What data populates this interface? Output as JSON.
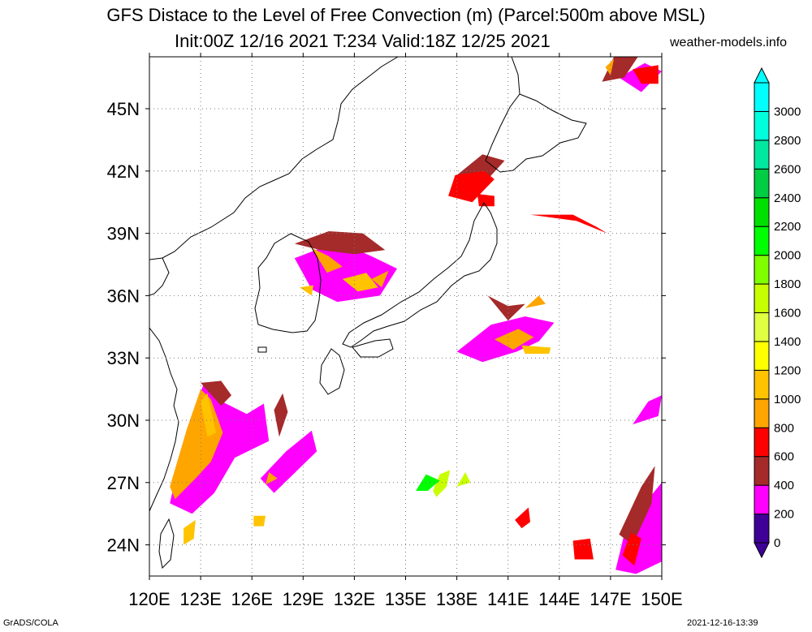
{
  "title": {
    "line1": "GFS Distace to the Level of Free Convection (m) (Parcel:500m above MSL)",
    "line2": "Init:00Z 12/16 2021 T:234 Valid:18Z 12/25 2021",
    "site": "weather-models.info"
  },
  "footer": {
    "left": "GrADS/COLA",
    "right": "2021-12-16-13:39"
  },
  "map": {
    "lon_range": [
      120,
      150
    ],
    "lat_range": [
      22.5,
      47.5
    ],
    "x_ticks": [
      "120E",
      "123E",
      "126E",
      "129E",
      "132E",
      "135E",
      "138E",
      "141E",
      "144E",
      "147E",
      "150E"
    ],
    "y_ticks": [
      "24N",
      "27N",
      "30N",
      "33N",
      "36N",
      "39N",
      "42N",
      "45N"
    ],
    "x_tick_values": [
      120,
      123,
      126,
      129,
      132,
      135,
      138,
      141,
      144,
      147,
      150
    ],
    "y_tick_values": [
      24,
      27,
      30,
      33,
      36,
      39,
      42,
      45
    ],
    "grid": true,
    "fields": [
      {
        "class": 1,
        "poly": [
          [
            122.1,
            29.3
          ],
          [
            123.2,
            31.8
          ],
          [
            124.0,
            31.0
          ],
          [
            125.7,
            30.3
          ],
          [
            126.7,
            30.8
          ],
          [
            127.0,
            29.0
          ],
          [
            125.0,
            28.2
          ],
          [
            123.8,
            26.5
          ],
          [
            122.5,
            25.5
          ],
          [
            121.2,
            26.0
          ]
        ]
      },
      {
        "class": 1,
        "poly": [
          [
            126.5,
            27.2
          ],
          [
            128.0,
            28.5
          ],
          [
            129.5,
            29.5
          ],
          [
            129.8,
            28.5
          ],
          [
            128.3,
            27.3
          ],
          [
            127.3,
            26.5
          ]
        ]
      },
      {
        "class": 1,
        "poly": [
          [
            128.5,
            37.8
          ],
          [
            131.0,
            38.6
          ],
          [
            133.0,
            37.9
          ],
          [
            134.5,
            37.3
          ],
          [
            133.5,
            36.0
          ],
          [
            131.0,
            35.7
          ],
          [
            129.5,
            36.3
          ]
        ]
      },
      {
        "class": 1,
        "poly": [
          [
            138.0,
            33.3
          ],
          [
            140.0,
            34.6
          ],
          [
            142.0,
            35.0
          ],
          [
            143.7,
            34.7
          ],
          [
            142.8,
            33.8
          ],
          [
            141.5,
            33.3
          ],
          [
            139.5,
            32.8
          ]
        ]
      },
      {
        "class": 1,
        "poly": [
          [
            147.5,
            46.5
          ],
          [
            149.0,
            47.2
          ],
          [
            150.0,
            46.8
          ],
          [
            148.8,
            45.8
          ]
        ]
      },
      {
        "class": 1,
        "poly": [
          [
            147.3,
            22.8
          ],
          [
            147.8,
            24.5
          ],
          [
            149.3,
            26.3
          ],
          [
            150.0,
            27.0
          ],
          [
            150.0,
            23.2
          ],
          [
            148.5,
            22.6
          ]
        ]
      },
      {
        "class": 1,
        "poly": [
          [
            148.3,
            29.8
          ],
          [
            149.2,
            30.9
          ],
          [
            150.0,
            31.2
          ],
          [
            149.8,
            30.2
          ]
        ]
      },
      {
        "class": 2,
        "poly": [
          [
            123.0,
            31.8
          ],
          [
            124.2,
            31.9
          ],
          [
            124.8,
            31.2
          ],
          [
            124.2,
            30.7
          ]
        ]
      },
      {
        "class": 2,
        "poly": [
          [
            128.5,
            38.5
          ],
          [
            130.5,
            39.1
          ],
          [
            132.5,
            39.0
          ],
          [
            133.8,
            38.2
          ],
          [
            132.0,
            38.0
          ],
          [
            130.0,
            38.2
          ]
        ]
      },
      {
        "class": 2,
        "poly": [
          [
            138.0,
            41.8
          ],
          [
            139.5,
            42.8
          ],
          [
            140.8,
            42.5
          ],
          [
            139.8,
            41.6
          ]
        ]
      },
      {
        "class": 2,
        "poly": [
          [
            146.5,
            46.3
          ],
          [
            147.2,
            47.5
          ],
          [
            148.6,
            47.5
          ],
          [
            147.8,
            46.5
          ]
        ]
      },
      {
        "class": 2,
        "poly": [
          [
            139.8,
            36.0
          ],
          [
            141.0,
            35.5
          ],
          [
            142.0,
            35.6
          ],
          [
            141.0,
            34.8
          ]
        ]
      },
      {
        "class": 2,
        "poly": [
          [
            147.5,
            24.5
          ],
          [
            148.8,
            26.8
          ],
          [
            149.6,
            27.8
          ],
          [
            149.4,
            26.0
          ],
          [
            148.3,
            24.0
          ]
        ]
      },
      {
        "class": 2,
        "poly": [
          [
            127.3,
            30.5
          ],
          [
            127.8,
            31.3
          ],
          [
            128.1,
            30.4
          ],
          [
            127.6,
            29.2
          ]
        ]
      },
      {
        "class": 3,
        "poly": [
          [
            137.9,
            41.8
          ],
          [
            137.5,
            40.8
          ],
          [
            138.9,
            40.5
          ],
          [
            140.2,
            41.6
          ],
          [
            139.6,
            42.0
          ]
        ]
      },
      {
        "class": 3,
        "poly": [
          [
            142.3,
            39.9
          ],
          [
            145.0,
            39.6
          ],
          [
            146.8,
            39.0
          ],
          [
            146.2,
            39.3
          ],
          [
            144.8,
            39.9
          ]
        ]
      },
      {
        "class": 3,
        "poly": [
          [
            148.3,
            46.9
          ],
          [
            149.8,
            47.1
          ],
          [
            149.8,
            46.2
          ],
          [
            148.8,
            46.2
          ]
        ]
      },
      {
        "class": 3,
        "poly": [
          [
            144.8,
            24.2
          ],
          [
            145.8,
            24.3
          ],
          [
            146.0,
            23.3
          ],
          [
            144.9,
            23.3
          ]
        ]
      },
      {
        "class": 3,
        "poly": [
          [
            147.7,
            23.5
          ],
          [
            148.2,
            24.6
          ],
          [
            148.8,
            24.3
          ],
          [
            148.4,
            23.0
          ]
        ]
      },
      {
        "class": 3,
        "poly": [
          [
            141.4,
            25.2
          ],
          [
            142.2,
            25.8
          ],
          [
            142.3,
            25.1
          ],
          [
            141.8,
            24.8
          ]
        ]
      },
      {
        "class": 3,
        "poly": [
          [
            139.2,
            40.9
          ],
          [
            140.2,
            40.8
          ],
          [
            140.2,
            40.3
          ],
          [
            139.3,
            40.3
          ]
        ]
      },
      {
        "class": 4,
        "poly": [
          [
            122.2,
            29.6
          ],
          [
            123.0,
            31.5
          ],
          [
            123.6,
            31.0
          ],
          [
            124.3,
            29.4
          ],
          [
            123.6,
            28.0
          ],
          [
            122.7,
            27.2
          ],
          [
            121.5,
            26.2
          ],
          [
            121.2,
            26.8
          ]
        ]
      },
      {
        "class": 4,
        "poly": [
          [
            129.5,
            38.3
          ],
          [
            130.5,
            37.9
          ],
          [
            131.3,
            37.4
          ],
          [
            130.4,
            37.1
          ]
        ]
      },
      {
        "class": 4,
        "poly": [
          [
            140.2,
            33.9
          ],
          [
            141.6,
            34.4
          ],
          [
            142.5,
            34.0
          ],
          [
            141.3,
            33.4
          ]
        ]
      },
      {
        "class": 4,
        "poly": [
          [
            142.0,
            35.4
          ],
          [
            142.8,
            36.0
          ],
          [
            143.2,
            35.6
          ]
        ]
      },
      {
        "class": 4,
        "poly": [
          [
            133.0,
            36.8
          ],
          [
            134.0,
            37.2
          ],
          [
            133.6,
            36.4
          ]
        ]
      },
      {
        "class": 4,
        "poly": [
          [
            127.0,
            27.5
          ],
          [
            127.5,
            27.2
          ],
          [
            126.8,
            26.9
          ]
        ]
      },
      {
        "class": 4,
        "poly": [
          [
            146.7,
            47.0
          ],
          [
            147.2,
            47.4
          ],
          [
            147.0,
            46.6
          ]
        ]
      },
      {
        "class": 5,
        "poly": [
          [
            123.0,
            30.9
          ],
          [
            123.4,
            31.3
          ],
          [
            123.9,
            29.4
          ],
          [
            123.4,
            29.2
          ]
        ]
      },
      {
        "class": 5,
        "poly": [
          [
            131.3,
            36.8
          ],
          [
            132.7,
            37.1
          ],
          [
            133.4,
            36.4
          ],
          [
            132.2,
            36.2
          ]
        ]
      },
      {
        "class": 5,
        "poly": [
          [
            141.8,
            33.6
          ],
          [
            143.5,
            33.5
          ],
          [
            143.4,
            33.2
          ],
          [
            142.0,
            33.2
          ]
        ]
      },
      {
        "class": 5,
        "poly": [
          [
            122.0,
            24.8
          ],
          [
            122.7,
            25.2
          ],
          [
            122.6,
            24.3
          ],
          [
            122.0,
            24.0
          ]
        ]
      },
      {
        "class": 5,
        "poly": [
          [
            128.8,
            36.4
          ],
          [
            129.6,
            36.5
          ],
          [
            129.5,
            36.0
          ]
        ]
      },
      {
        "class": 5,
        "poly": [
          [
            126.1,
            25.4
          ],
          [
            126.8,
            25.4
          ],
          [
            126.7,
            24.9
          ],
          [
            126.1,
            24.9
          ]
        ]
      },
      {
        "class": 8,
        "poly": [
          [
            136.6,
            26.6
          ],
          [
            137.0,
            27.4
          ],
          [
            137.6,
            27.6
          ],
          [
            137.4,
            26.8
          ],
          [
            136.8,
            26.3
          ]
        ]
      },
      {
        "class": 8,
        "poly": [
          [
            138.0,
            26.8
          ],
          [
            138.5,
            27.5
          ],
          [
            138.8,
            27.0
          ]
        ]
      },
      {
        "class": 10,
        "poly": [
          [
            135.6,
            26.6
          ],
          [
            136.2,
            27.4
          ],
          [
            137.0,
            27.1
          ],
          [
            136.3,
            26.6
          ]
        ]
      }
    ]
  },
  "colorbar": {
    "labels": [
      "0",
      "200",
      "400",
      "600",
      "800",
      "1000",
      "1200",
      "1400",
      "1600",
      "1800",
      "2000",
      "2200",
      "2400",
      "2600",
      "2800",
      "3000"
    ],
    "colors": [
      "#3f0098",
      "#ff00ff",
      "#a52a2a",
      "#ff0000",
      "#ffa500",
      "#ffc300",
      "#ffff00",
      "#e0ff40",
      "#c8ff00",
      "#7fff00",
      "#00ff00",
      "#00e000",
      "#00cc44",
      "#00e8a0",
      "#00ffdd",
      "#00ffff"
    ],
    "extend": "both"
  }
}
